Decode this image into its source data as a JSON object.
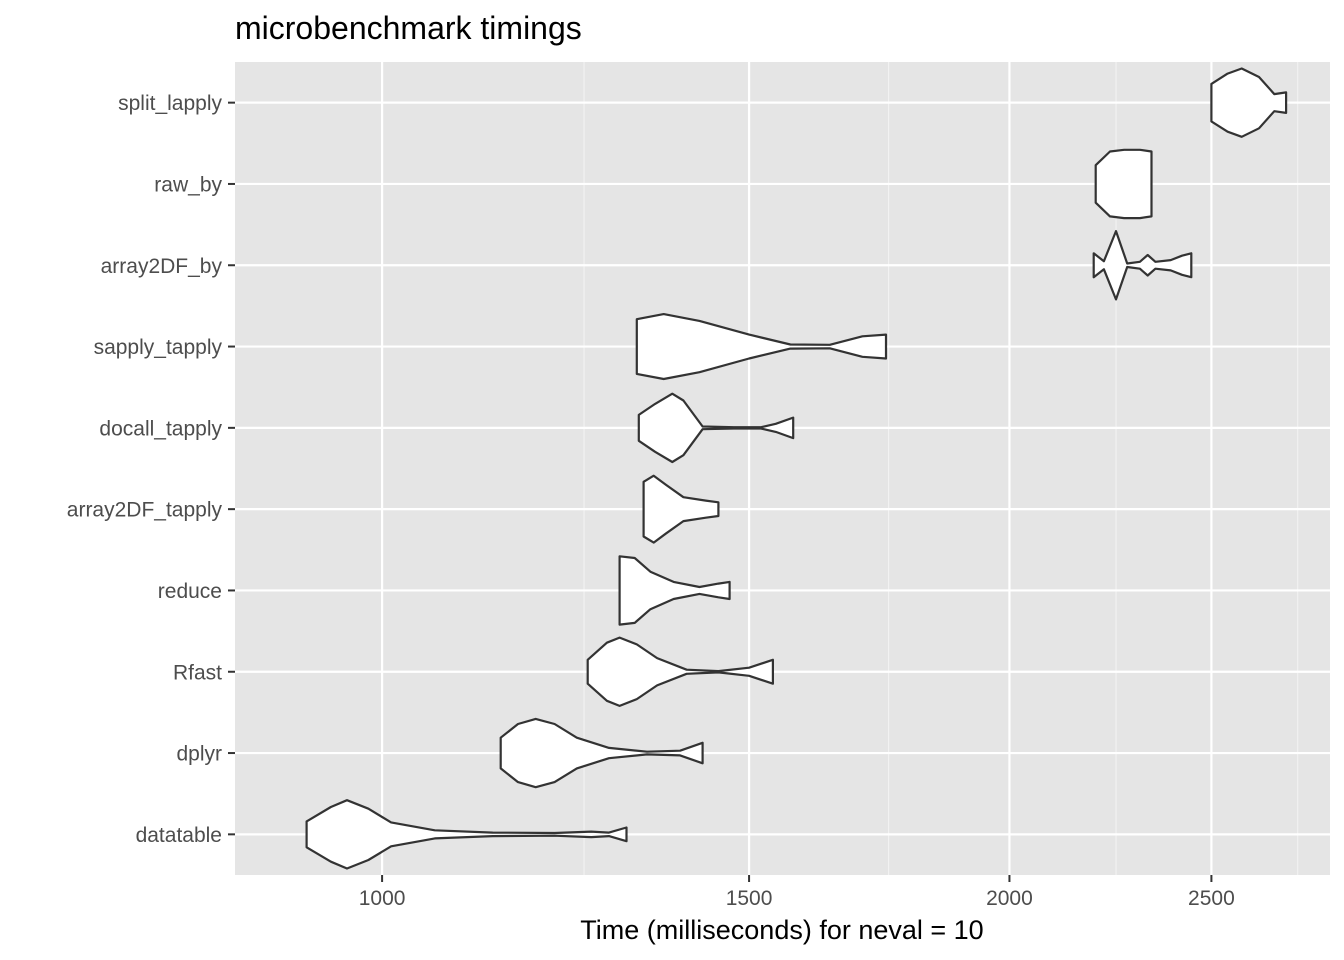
{
  "chart_data": {
    "type": "violin",
    "title": "microbenchmark timings",
    "xlabel": "Time (milliseconds) for neval = 10",
    "ylabel": "",
    "x_scale": "log10",
    "xlim": [
      850,
      2850
    ],
    "x_ticks": [
      1000,
      1500,
      2000,
      2500
    ],
    "x_tick_labels": [
      "1000",
      "1500",
      "2000",
      "2500"
    ],
    "x_minor_ticks": [
      1250,
      1750,
      2250,
      2750
    ],
    "categories": [
      "datatable",
      "dplyr",
      "Rfast",
      "reduce",
      "array2DF_tapply",
      "docall_tapply",
      "sapply_tapply",
      "array2DF_by",
      "raw_by",
      "split_lapply"
    ],
    "grid": true,
    "legend": "none",
    "colors": {
      "panel_background": "#e5e5e5",
      "grid_major": "#ffffff",
      "grid_minor": "#f2f2f2",
      "violin_fill": "#ffffff",
      "violin_stroke": "#333333",
      "tick_text": "#4d4d4d",
      "title_text": "#000000"
    },
    "series": [
      {
        "category": "datatable",
        "min": 920,
        "max": 1310,
        "profile": [
          [
            920,
            0.38
          ],
          [
            945,
            0.8
          ],
          [
            962,
            1.0
          ],
          [
            985,
            0.75
          ],
          [
            1010,
            0.35
          ],
          [
            1060,
            0.12
          ],
          [
            1130,
            0.05
          ],
          [
            1210,
            0.04
          ],
          [
            1260,
            0.08
          ],
          [
            1285,
            0.05
          ],
          [
            1310,
            0.2
          ]
        ]
      },
      {
        "category": "dplyr",
        "min": 1140,
        "max": 1425,
        "profile": [
          [
            1140,
            0.45
          ],
          [
            1162,
            0.85
          ],
          [
            1185,
            1.0
          ],
          [
            1210,
            0.85
          ],
          [
            1240,
            0.45
          ],
          [
            1285,
            0.15
          ],
          [
            1340,
            0.04
          ],
          [
            1390,
            0.07
          ],
          [
            1425,
            0.3
          ]
        ]
      },
      {
        "category": "Rfast",
        "min": 1255,
        "max": 1540,
        "profile": [
          [
            1255,
            0.35
          ],
          [
            1282,
            0.85
          ],
          [
            1300,
            1.0
          ],
          [
            1325,
            0.8
          ],
          [
            1355,
            0.4
          ],
          [
            1400,
            0.06
          ],
          [
            1450,
            0.02
          ],
          [
            1500,
            0.12
          ],
          [
            1540,
            0.35
          ]
        ]
      },
      {
        "category": "reduce",
        "min": 1300,
        "max": 1468,
        "profile": [
          [
            1300,
            1.0
          ],
          [
            1322,
            0.95
          ],
          [
            1345,
            0.55
          ],
          [
            1380,
            0.25
          ],
          [
            1420,
            0.1
          ],
          [
            1450,
            0.2
          ],
          [
            1468,
            0.25
          ]
        ]
      },
      {
        "category": "array2DF_tapply",
        "min": 1335,
        "max": 1450,
        "profile": [
          [
            1335,
            0.8
          ],
          [
            1350,
            0.98
          ],
          [
            1368,
            0.72
          ],
          [
            1395,
            0.35
          ],
          [
            1430,
            0.25
          ],
          [
            1450,
            0.2
          ]
        ]
      },
      {
        "category": "docall_tapply",
        "min": 1328,
        "max": 1575,
        "profile": [
          [
            1328,
            0.38
          ],
          [
            1352,
            0.7
          ],
          [
            1378,
            1.0
          ],
          [
            1395,
            0.8
          ],
          [
            1425,
            0.04
          ],
          [
            1475,
            0.02
          ],
          [
            1520,
            0.02
          ],
          [
            1545,
            0.12
          ],
          [
            1575,
            0.3
          ]
        ]
      },
      {
        "category": "sapply_tapply",
        "min": 1325,
        "max": 1745,
        "profile": [
          [
            1325,
            0.8
          ],
          [
            1365,
            0.95
          ],
          [
            1420,
            0.75
          ],
          [
            1500,
            0.35
          ],
          [
            1570,
            0.06
          ],
          [
            1640,
            0.05
          ],
          [
            1700,
            0.3
          ],
          [
            1745,
            0.35
          ]
        ]
      },
      {
        "category": "array2DF_by",
        "min": 2195,
        "max": 2445,
        "profile": [
          [
            2195,
            0.35
          ],
          [
            2220,
            0.12
          ],
          [
            2250,
            1.0
          ],
          [
            2278,
            0.05
          ],
          [
            2310,
            0.1
          ],
          [
            2330,
            0.3
          ],
          [
            2350,
            0.1
          ],
          [
            2390,
            0.15
          ],
          [
            2420,
            0.28
          ],
          [
            2445,
            0.35
          ]
        ]
      },
      {
        "category": "raw_by",
        "min": 2200,
        "max": 2340,
        "profile": [
          [
            2200,
            0.55
          ],
          [
            2235,
            0.95
          ],
          [
            2270,
            1.0
          ],
          [
            2310,
            1.0
          ],
          [
            2340,
            0.95
          ]
        ]
      },
      {
        "category": "split_lapply",
        "min": 2500,
        "max": 2715,
        "profile": [
          [
            2500,
            0.55
          ],
          [
            2545,
            0.85
          ],
          [
            2585,
            1.0
          ],
          [
            2635,
            0.75
          ],
          [
            2680,
            0.25
          ],
          [
            2715,
            0.3
          ]
        ]
      }
    ]
  }
}
